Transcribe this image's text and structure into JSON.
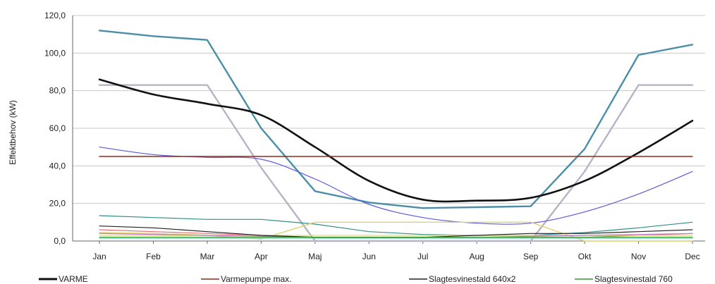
{
  "chart_data": {
    "type": "line",
    "title": "",
    "xlabel": "",
    "ylabel": "Effektbehov (kW)",
    "ylim": [
      0,
      120
    ],
    "y_ticks": [
      "0,0",
      "20,0",
      "40,0",
      "60,0",
      "80,0",
      "100,0",
      "120,0"
    ],
    "grid": true,
    "legend_position": "bottom",
    "categories": [
      "Jan",
      "Feb",
      "Mar",
      "Apr",
      "Maj",
      "Jun",
      "Jul",
      "Aug",
      "Sep",
      "Okt",
      "Nov",
      "Dec"
    ],
    "series": [
      {
        "name": "VARME",
        "color": "#111111",
        "width": 2.6,
        "smooth": true,
        "values": [
          86,
          78,
          73,
          67,
          50,
          32,
          22,
          21.5,
          23,
          32,
          47,
          64
        ]
      },
      {
        "name": "Varmepumpe max.",
        "color": "#8b2a1e",
        "width": 1.4,
        "values": [
          45,
          45,
          45,
          45,
          45,
          45,
          45,
          45,
          45,
          45,
          45,
          45
        ]
      },
      {
        "name": "Slagtesvinestald 640x2",
        "color": "#222222",
        "width": 1.2,
        "values": [
          8,
          7,
          5,
          3,
          2,
          2,
          2,
          3,
          4,
          4,
          5,
          6
        ]
      },
      {
        "name": "Slagtesvinestald 760",
        "color": "#2e9a2e",
        "width": 1.2,
        "values": [
          2,
          2,
          2,
          2,
          2,
          2,
          2,
          2,
          2,
          2,
          2,
          2
        ]
      },
      {
        "color": "#4a8ea8",
        "width": 2.4,
        "values": [
          112,
          109,
          107,
          60,
          26.5,
          20.5,
          17.5,
          18,
          18.5,
          49,
          99,
          104.5
        ]
      },
      {
        "color": "#b8b3c7",
        "width": 2.4,
        "values": [
          83,
          83,
          83,
          39,
          0,
          0,
          0,
          0,
          0,
          37,
          83,
          83
        ]
      },
      {
        "color": "#5c5ae0",
        "width": 1.2,
        "smooth": true,
        "values": [
          50,
          46,
          44.5,
          43.5,
          33,
          19.5,
          12.5,
          9.5,
          9.5,
          15.5,
          25,
          37
        ]
      },
      {
        "color": "#2f8f8a",
        "width": 1.2,
        "values": [
          13.5,
          12.5,
          11.5,
          11.5,
          9,
          5,
          3.5,
          3,
          3,
          4.5,
          7,
          10
        ]
      },
      {
        "color": "#e0d070",
        "width": 1.4,
        "values": [
          4.5,
          4,
          3,
          1,
          10,
          10,
          10,
          10,
          10,
          0,
          0,
          0
        ]
      },
      {
        "color": "#e07070",
        "width": 1.2,
        "values": [
          6,
          5,
          4,
          3,
          2,
          2,
          2,
          2,
          2,
          2,
          3,
          4
        ]
      },
      {
        "color": "#d8e070",
        "width": 1.2,
        "values": [
          3,
          3,
          3,
          3,
          3,
          3,
          3,
          3,
          3,
          3,
          3,
          3
        ]
      },
      {
        "color": "#70d0d0",
        "width": 1.2,
        "values": [
          1.5,
          1.5,
          1.5,
          1.5,
          1.5,
          1.5,
          1.5,
          1.5,
          1.5,
          1.5,
          1.5,
          1.5
        ]
      },
      {
        "color": "#c070c0",
        "width": 1.2,
        "values": [
          4,
          3.5,
          3,
          2.5,
          2,
          2,
          2,
          2,
          2.5,
          3,
          3.5,
          4
        ]
      }
    ]
  }
}
